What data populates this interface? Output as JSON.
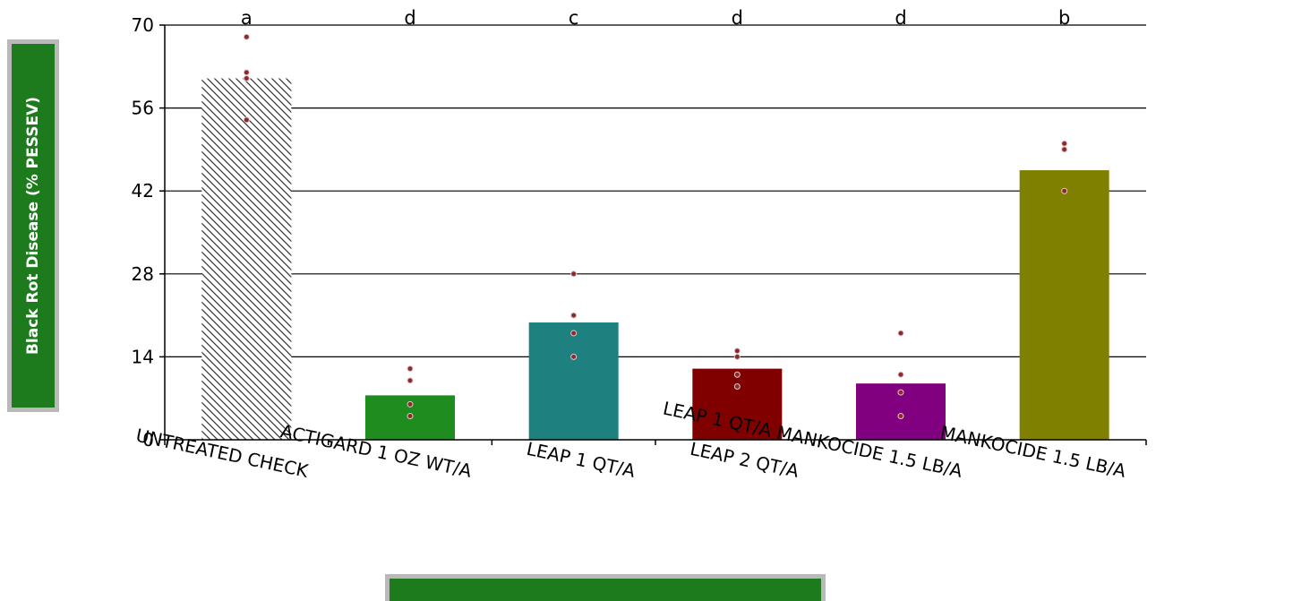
{
  "chart_data": {
    "type": "bar",
    "ylabel": "Black Rot Disease (% PESSEV)",
    "xlabel": "",
    "ylim": [
      0,
      70
    ],
    "yticks": [
      0,
      14,
      28,
      42,
      56,
      70
    ],
    "grid": "horizontal",
    "categories": [
      "UNTREATED CHECK",
      "ACTIGARD 1 OZ WT/A",
      "LEAP 1 QT/A",
      "LEAP 2 QT/A",
      "LEAP 1 QT/A MANKOCIDE 1.5 LB/A",
      "MANKOCIDE 1.5 LB/A"
    ],
    "values": [
      61,
      7.5,
      19.8,
      12,
      9.5,
      45.5
    ],
    "significance_letters": [
      "a",
      "d",
      "c",
      "d",
      "d",
      "b"
    ],
    "bar_colors": [
      "hatched",
      "#1f8c1f",
      "#1f8080",
      "#800000",
      "#800080",
      "#808000"
    ],
    "replicates": [
      [
        68,
        62,
        61,
        54
      ],
      [
        12,
        10,
        6,
        4
      ],
      [
        28,
        21,
        18,
        14
      ],
      [
        15,
        14,
        11,
        9
      ],
      [
        18,
        11,
        8,
        4
      ],
      [
        50,
        49,
        49,
        42
      ]
    ],
    "point_color": "#8b2a2a"
  }
}
